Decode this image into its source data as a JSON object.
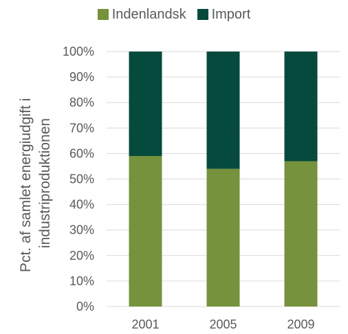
{
  "colors": {
    "Indenlandsk": "#76923c",
    "Import": "#054a3c",
    "grid": "#d9d9d9",
    "text": "#595959"
  },
  "legend": {
    "items": [
      {
        "label": "Indenlandsk",
        "color": "#76923c"
      },
      {
        "label": "Import",
        "color": "#054a3c"
      }
    ]
  },
  "chart_data": {
    "type": "bar",
    "stacked": true,
    "categories": [
      "2001",
      "2005",
      "2009"
    ],
    "series": [
      {
        "name": "Indenlandsk",
        "values": [
          59,
          54,
          57
        ]
      },
      {
        "name": "Import",
        "values": [
          41,
          46,
          43
        ]
      }
    ],
    "ylabel_lines": [
      "Pct. af samlet energiudgift i",
      "industriproduktionen"
    ],
    "yticks": [
      "0%",
      "10%",
      "20%",
      "30%",
      "40%",
      "50%",
      "60%",
      "70%",
      "80%",
      "90%",
      "100%"
    ],
    "ylim": [
      0,
      100
    ],
    "grid": true,
    "legend_position": "top"
  }
}
